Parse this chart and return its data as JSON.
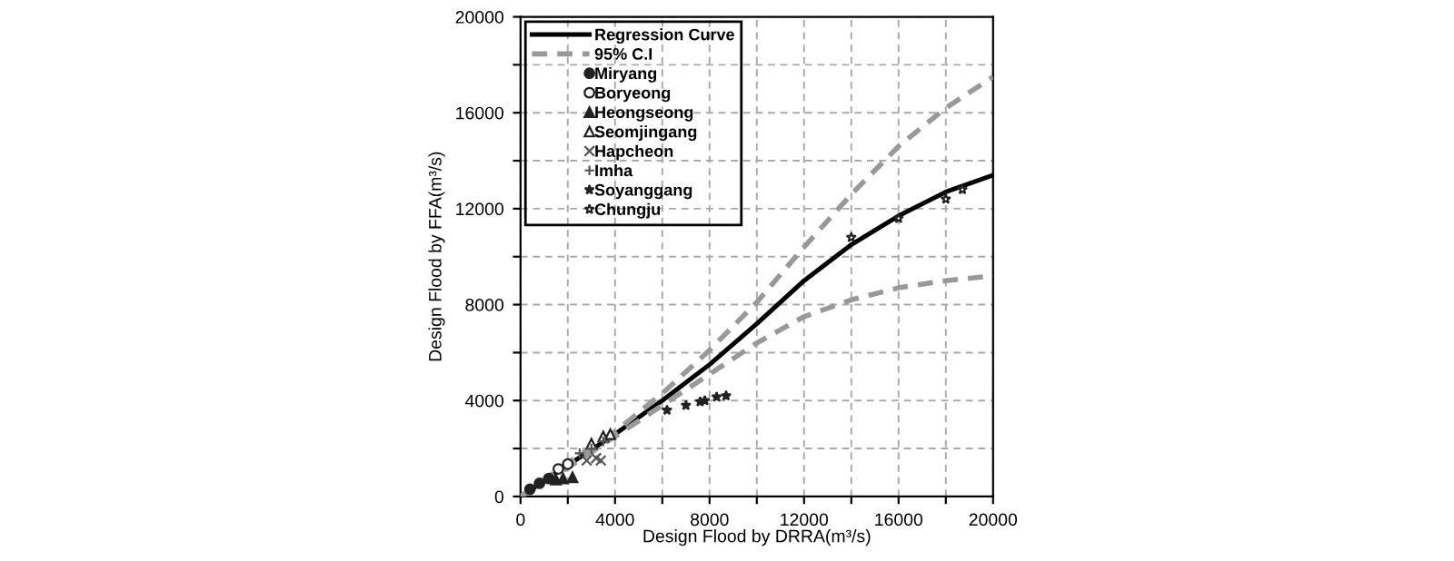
{
  "chart_data": {
    "type": "scatter",
    "xlabel": "Design Flood by DRRA(m³/s)",
    "ylabel": "Design Flood by FFA(m³/s)",
    "xlim": [
      0,
      20000
    ],
    "ylim": [
      0,
      20000
    ],
    "xticks": [
      0,
      {
        "value": 2000,
        "label": null
      },
      4000,
      {
        "value": 6000,
        "label": null
      },
      8000,
      {
        "value": 10000,
        "label": null
      },
      12000,
      {
        "value": 14000,
        "label": null
      },
      16000,
      {
        "value": 18000,
        "label": null
      },
      20000
    ],
    "yticks": [
      0,
      {
        "value": 2000,
        "label": null
      },
      4000,
      {
        "value": 6000,
        "label": null
      },
      8000,
      {
        "value": 10000,
        "label": null
      },
      12000,
      {
        "value": 14000,
        "label": null
      },
      16000,
      {
        "value": 18000,
        "label": null
      },
      20000
    ],
    "grid": true,
    "legend": "top left",
    "series": [
      {
        "name": "Regression Curve",
        "type": "line",
        "color": "#000000",
        "line_style": "solid",
        "x": [
          0,
          2000,
          4000,
          6000,
          8000,
          10000,
          12000,
          14000,
          16000,
          18000,
          20000
        ],
        "values": [
          0,
          1300,
          2600,
          4000,
          5500,
          7200,
          9000,
          10500,
          11700,
          12700,
          13400
        ]
      },
      {
        "name": "95% C.I",
        "type": "line",
        "color": "#999999",
        "line_style": "dashed",
        "x": [
          0,
          2000,
          4000,
          6000,
          8000,
          10000,
          12000,
          14000,
          16000,
          18000,
          20000
        ],
        "values": [
          0,
          1400,
          2700,
          4300,
          6100,
          8100,
          10400,
          12600,
          14600,
          16200,
          17500
        ]
      },
      {
        "type": "line",
        "color": "#999999",
        "line_style": "dashed",
        "x": [
          0,
          2000,
          4000,
          6000,
          8000,
          10000,
          12000,
          14000,
          16000,
          18000,
          20000
        ],
        "values": [
          0,
          1200,
          2500,
          3800,
          5100,
          6400,
          7500,
          8200,
          8700,
          9000,
          9200
        ]
      },
      {
        "name": "Miryang",
        "marker": "circle",
        "color": "#222222",
        "x": [
          400,
          800,
          1200
        ],
        "values": [
          300,
          550,
          750
        ]
      },
      {
        "name": "Boryeong",
        "marker": "circle",
        "color": "#ffffff",
        "x": [
          1600,
          2000
        ],
        "values": [
          1150,
          1350
        ]
      },
      {
        "name": "Heongseong",
        "marker": "triangle",
        "color": "#222222",
        "x": [
          1500,
          1800,
          2200
        ],
        "values": [
          700,
          750,
          800
        ]
      },
      {
        "name": "Seomjingang",
        "marker": "triangle",
        "color": "#ffffff",
        "x": [
          3000,
          3500,
          3800
        ],
        "values": [
          2200,
          2500,
          2600
        ]
      },
      {
        "name": "Hapcheon",
        "marker": "cross",
        "color": "#555555",
        "x": [
          2800,
          3200,
          3400
        ],
        "values": [
          1500,
          1600,
          1500
        ]
      },
      {
        "name": "Imha",
        "marker": "plus",
        "color": "#555555",
        "x": [
          2500,
          3000,
          3500
        ],
        "values": [
          1800,
          2000,
          2300
        ]
      },
      {
        "name": "Soyanggang",
        "marker": "star",
        "color": "#222222",
        "x": [
          6200,
          7000,
          7600,
          7800,
          8300,
          8700
        ],
        "values": [
          3600,
          3800,
          3950,
          4000,
          4150,
          4200
        ]
      },
      {
        "name": "Chungju",
        "marker": "star",
        "color": "#ffffff",
        "x": [
          14000,
          16000,
          18000,
          18700
        ],
        "values": [
          10800,
          11600,
          12400,
          12800
        ]
      }
    ]
  }
}
